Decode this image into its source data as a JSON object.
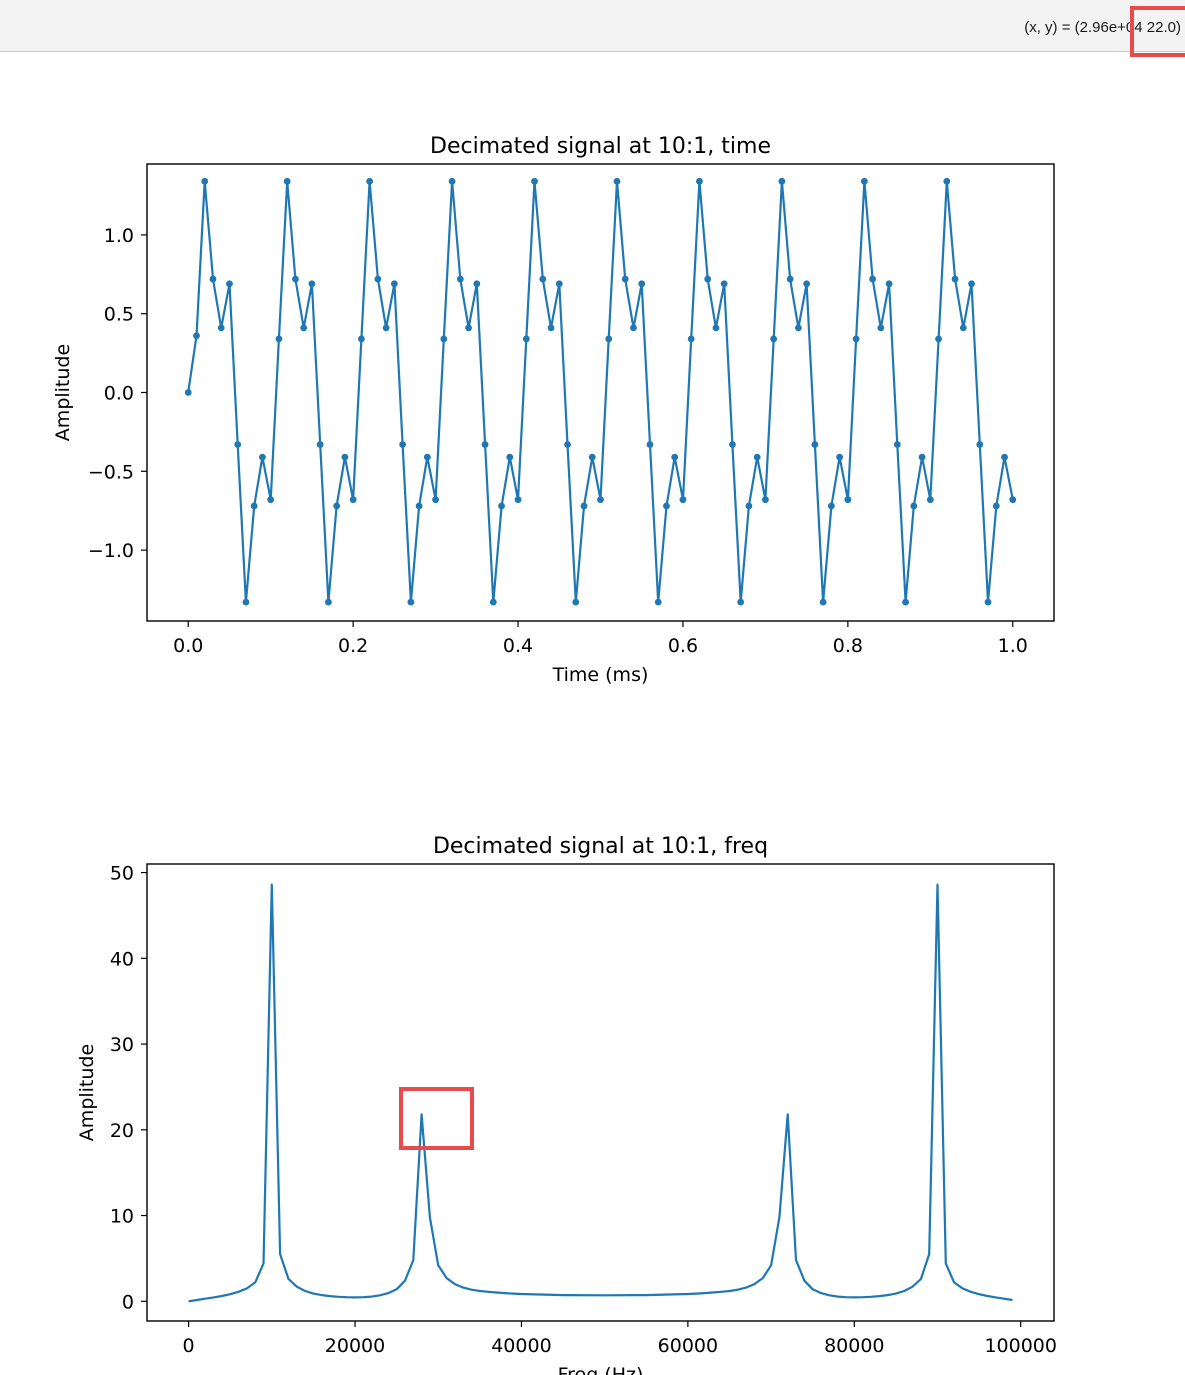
{
  "toolbar": {
    "coord_prefix": "(x, y) = (2.96e+04",
    "coord_value": "22.0)"
  },
  "chart_data": [
    {
      "type": "line",
      "title": "Decimated signal at 10:1, time",
      "xlabel": "Time (ms)",
      "ylabel": "Amplitude",
      "xlim": [
        -0.05,
        1.05
      ],
      "ylim": [
        -1.45,
        1.45
      ],
      "xticks": [
        0.0,
        0.2,
        0.4,
        0.6,
        0.8,
        1.0
      ],
      "xtick_labels": [
        "0.0",
        "0.2",
        "0.4",
        "0.6",
        "0.8",
        "1.0"
      ],
      "yticks": [
        -1.0,
        -0.5,
        0.0,
        0.5,
        1.0
      ],
      "ytick_labels": [
        "−1.0",
        "−0.5",
        "0.0",
        "0.5",
        "1.0"
      ],
      "color": "#1f77b4",
      "markers": true,
      "x": [
        0.0,
        0.01,
        0.02,
        0.03,
        0.04,
        0.05,
        0.06,
        0.07,
        0.08,
        0.09,
        0.1,
        0.11,
        0.12,
        0.13,
        0.14,
        0.15,
        0.16,
        0.17,
        0.18,
        0.19,
        0.2,
        0.21,
        0.22,
        0.23,
        0.24,
        0.25,
        0.26,
        0.27,
        0.28,
        0.29,
        0.3,
        0.31,
        0.32,
        0.33,
        0.34,
        0.35,
        0.36,
        0.37,
        0.38,
        0.39,
        0.4,
        0.41,
        0.42,
        0.43,
        0.44,
        0.45,
        0.46,
        0.47,
        0.48,
        0.49,
        0.5,
        0.51,
        0.52,
        0.53,
        0.54,
        0.55,
        0.56,
        0.57,
        0.58,
        0.59,
        0.6,
        0.61,
        0.62,
        0.63,
        0.64,
        0.65,
        0.66,
        0.67,
        0.68,
        0.69,
        0.7,
        0.71,
        0.72,
        0.73,
        0.74,
        0.75,
        0.76,
        0.77,
        0.78,
        0.79,
        0.8,
        0.81,
        0.82,
        0.83,
        0.84,
        0.85,
        0.86,
        0.87,
        0.88,
        0.89,
        0.9,
        0.91,
        0.92,
        0.93,
        0.94,
        0.95,
        0.96,
        0.97,
        0.98,
        0.99,
        1.0
      ],
      "y": [
        0.0,
        0.36,
        1.34,
        0.72,
        0.41,
        0.69,
        -0.33,
        -1.33,
        -0.72,
        -0.41,
        -0.68,
        0.34,
        1.34,
        0.72,
        0.41,
        0.69,
        -0.33,
        -1.33,
        -0.72,
        -0.41,
        -0.68,
        0.34,
        1.34,
        0.72,
        0.41,
        0.69,
        -0.33,
        -1.33,
        -0.72,
        -0.41,
        -0.68,
        0.34,
        1.34,
        0.72,
        0.41,
        0.69,
        -0.33,
        -1.33,
        -0.72,
        -0.41,
        -0.68,
        0.34,
        1.34,
        0.72,
        0.41,
        0.69,
        -0.33,
        -1.33,
        -0.72,
        -0.41,
        -0.68,
        0.34,
        1.34,
        0.72,
        0.41,
        0.69,
        -0.33,
        -1.33,
        -0.72,
        -0.41,
        -0.68,
        0.34,
        1.34,
        0.72,
        0.41,
        0.69,
        -0.33,
        -1.33,
        -0.72,
        -0.41,
        -0.68,
        0.34,
        1.34,
        0.72,
        0.41,
        0.69,
        -0.33,
        -1.33,
        -0.72,
        -0.41,
        -0.68,
        0.34,
        1.34,
        0.72,
        0.41,
        0.69,
        -0.33,
        -1.33,
        -0.72,
        -0.41,
        -0.68,
        0.34,
        1.34,
        0.72,
        0.41,
        0.69,
        -0.33,
        -1.33,
        -0.72,
        -0.41,
        -0.68
      ]
    },
    {
      "type": "line",
      "title": "Decimated signal at 10:1, freq",
      "xlabel": "Freq (Hz)",
      "ylabel": "Amplitude",
      "xlim": [
        -5000,
        104000
      ],
      "ylim": [
        -2.3,
        51.0
      ],
      "xticks": [
        0,
        20000,
        40000,
        60000,
        80000,
        100000
      ],
      "xtick_labels": [
        "0",
        "20000",
        "40000",
        "60000",
        "80000",
        "100000"
      ],
      "yticks": [
        0,
        10,
        20,
        30,
        40,
        50
      ],
      "ytick_labels": [
        "0",
        "10",
        "20",
        "30",
        "40",
        "50"
      ],
      "color": "#1f77b4",
      "markers": false,
      "x": [
        0,
        1000,
        2000,
        3000,
        4000,
        5000,
        6000,
        7000,
        8000,
        9000,
        10000,
        11000,
        12000,
        13000,
        14000,
        15000,
        16000,
        17000,
        18000,
        19000,
        20000,
        21000,
        22000,
        23000,
        24000,
        25000,
        26000,
        27000,
        28000,
        29000,
        30000,
        31000,
        32000,
        33000,
        34000,
        35000,
        36000,
        37000,
        38000,
        39000,
        40000,
        45000,
        50000,
        55000,
        60000,
        61000,
        62000,
        63000,
        64000,
        65000,
        66000,
        67000,
        68000,
        69000,
        70000,
        71000,
        72000,
        73000,
        74000,
        75000,
        76000,
        77000,
        78000,
        79000,
        80000,
        81000,
        82000,
        83000,
        84000,
        85000,
        86000,
        87000,
        88000,
        89000,
        90000,
        91000,
        92000,
        93000,
        94000,
        95000,
        96000,
        97000,
        98000,
        99000
      ],
      "y": [
        0.0,
        0.15,
        0.3,
        0.45,
        0.62,
        0.82,
        1.1,
        1.5,
        2.2,
        4.4,
        48.6,
        5.5,
        2.6,
        1.7,
        1.2,
        0.9,
        0.72,
        0.6,
        0.52,
        0.47,
        0.45,
        0.47,
        0.55,
        0.7,
        0.95,
        1.4,
        2.4,
        4.8,
        21.8,
        9.8,
        4.2,
        2.7,
        2.0,
        1.6,
        1.35,
        1.2,
        1.1,
        1.02,
        0.95,
        0.9,
        0.85,
        0.72,
        0.7,
        0.72,
        0.85,
        0.9,
        0.95,
        1.02,
        1.1,
        1.2,
        1.35,
        1.6,
        2.0,
        2.7,
        4.2,
        9.8,
        21.8,
        4.8,
        2.4,
        1.4,
        0.95,
        0.7,
        0.55,
        0.47,
        0.45,
        0.47,
        0.52,
        0.6,
        0.72,
        0.9,
        1.2,
        1.7,
        2.6,
        5.5,
        48.6,
        4.4,
        2.2,
        1.5,
        1.1,
        0.82,
        0.62,
        0.45,
        0.3,
        0.15
      ]
    }
  ]
}
